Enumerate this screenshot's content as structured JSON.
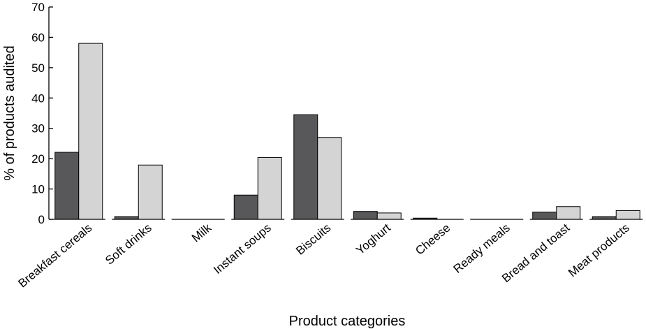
{
  "chart_data": {
    "type": "bar",
    "title": "",
    "xlabel": "Product categories",
    "ylabel": "% of products audited",
    "ylim": [
      0,
      70
    ],
    "yticks": [
      0,
      10,
      20,
      30,
      40,
      50,
      60,
      70
    ],
    "grid": false,
    "legend": "none",
    "categories": [
      "Breakfast cereals",
      "Soft drinks",
      "Milk",
      "Instant soups",
      "Biscuits",
      "Yoghurt",
      "Cheese",
      "Ready meals",
      "Bread and toast",
      "Meat products"
    ],
    "series": [
      {
        "values": [
          22.1,
          0.9,
          0,
          8.0,
          34.5,
          2.6,
          0.4,
          0,
          2.4,
          0.9
        ],
        "color": "#58585a"
      },
      {
        "values": [
          58.0,
          17.9,
          0,
          20.4,
          27.0,
          2.1,
          0,
          0,
          4.2,
          2.9
        ],
        "color": "#d4d4d4"
      }
    ]
  }
}
